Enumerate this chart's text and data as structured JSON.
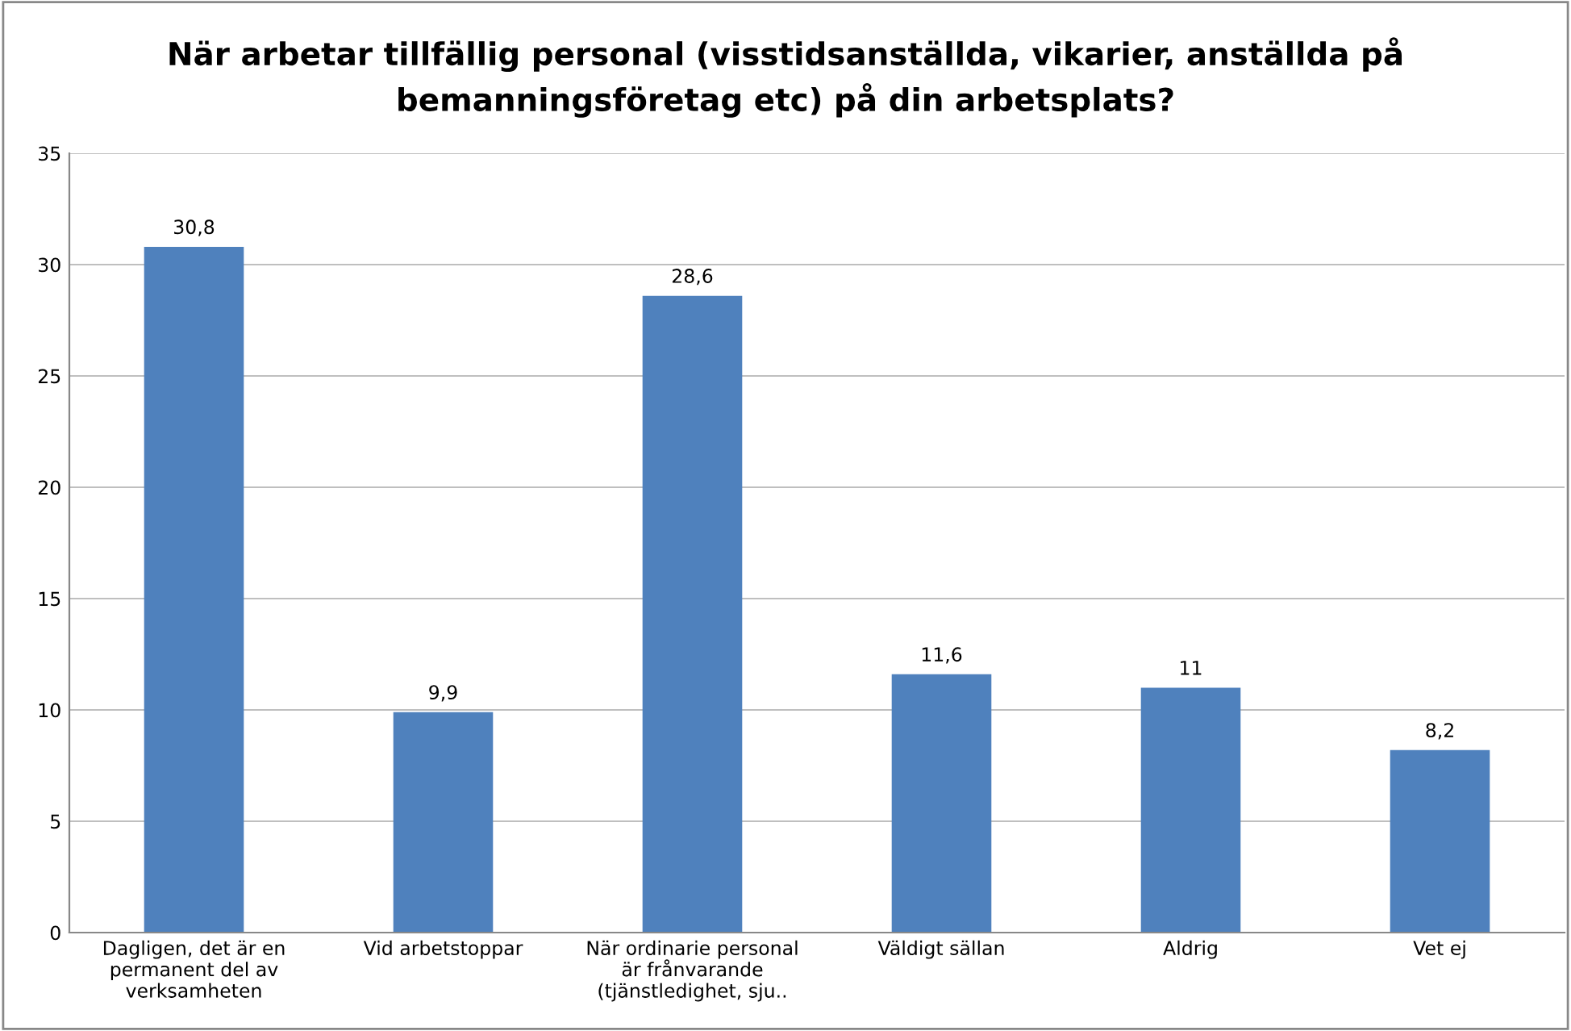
{
  "chart_data": {
    "type": "bar",
    "title": "När arbetar tillfällig personal (visstidsanställda, vikarier, anställda på bemanningsföretag etc) på din arbetsplats?",
    "categories": [
      "Dagligen, det är en permanent del av verksamheten",
      "Vid arbetstoppar",
      "När ordinarie personal är frånvarande (tjänstledighet, sju..",
      "Väldigt sällan",
      "Aldrig",
      "Vet ej"
    ],
    "values": [
      30.8,
      9.9,
      28.6,
      11.6,
      11,
      8.2
    ],
    "color": "#4f81bd",
    "ylim": [
      0,
      35
    ],
    "yticks": [
      0,
      5,
      10,
      15,
      20,
      25,
      30,
      35
    ],
    "value_labels": [
      "30,8",
      "9,9",
      "28,6",
      "11,6",
      "11",
      "8,2"
    ],
    "grid": "y",
    "legend": false
  }
}
